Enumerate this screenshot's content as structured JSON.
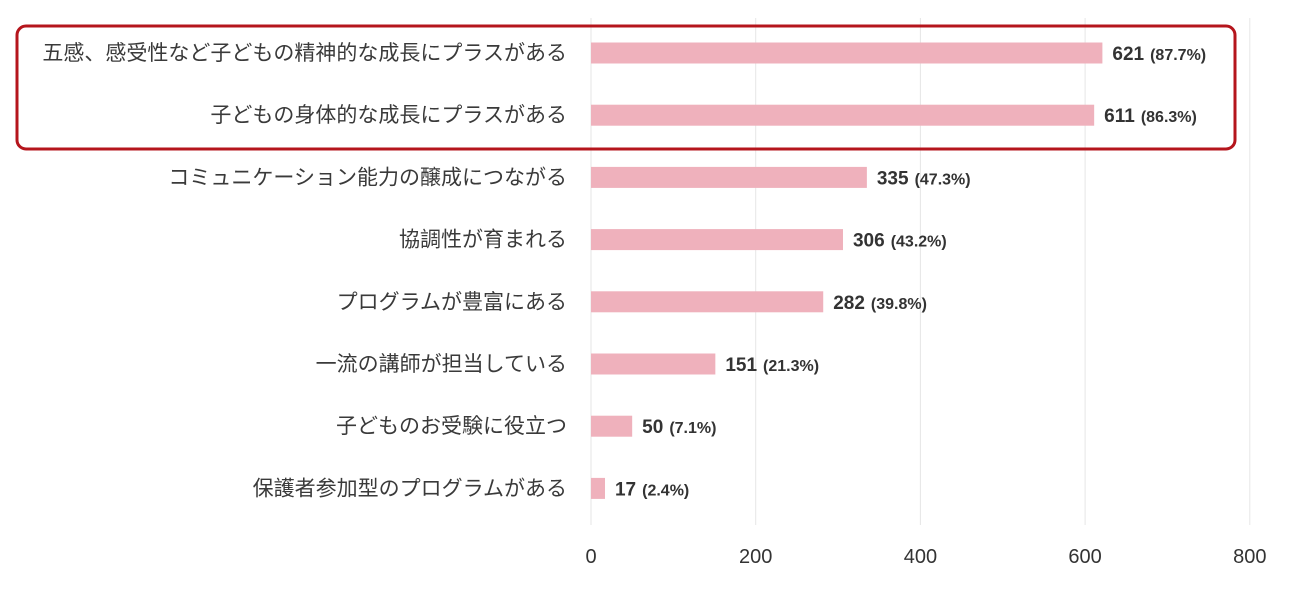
{
  "chart_data": {
    "type": "bar",
    "orientation": "horizontal",
    "categories": [
      "五感、感受性など子どもの精神的な成長にプラスがある",
      "子どもの身体的な成長にプラスがある",
      "コミュニケーション能力の醸成につながる",
      "協調性が育まれる",
      "プログラムが豊富にある",
      "一流の講師が担当している",
      "子どものお受験に役立つ",
      "保護者参加型のプログラムがある"
    ],
    "values": [
      621,
      611,
      335,
      306,
      282,
      151,
      50,
      17
    ],
    "percent_labels": [
      "(87.7%)",
      "(86.3%)",
      "(47.3%)",
      "(43.2%)",
      "(39.8%)",
      "(21.3%)",
      "(7.1%)",
      "(2.4%)"
    ],
    "xlim": [
      0,
      800
    ],
    "xticks": [
      "0",
      "200",
      "400",
      "600",
      "800"
    ],
    "grid": true,
    "highlight_box": "first two categories",
    "colors": {
      "bar": "#efb1bc",
      "grid": "#e6e6e6",
      "highlight": "#b5151c"
    }
  }
}
